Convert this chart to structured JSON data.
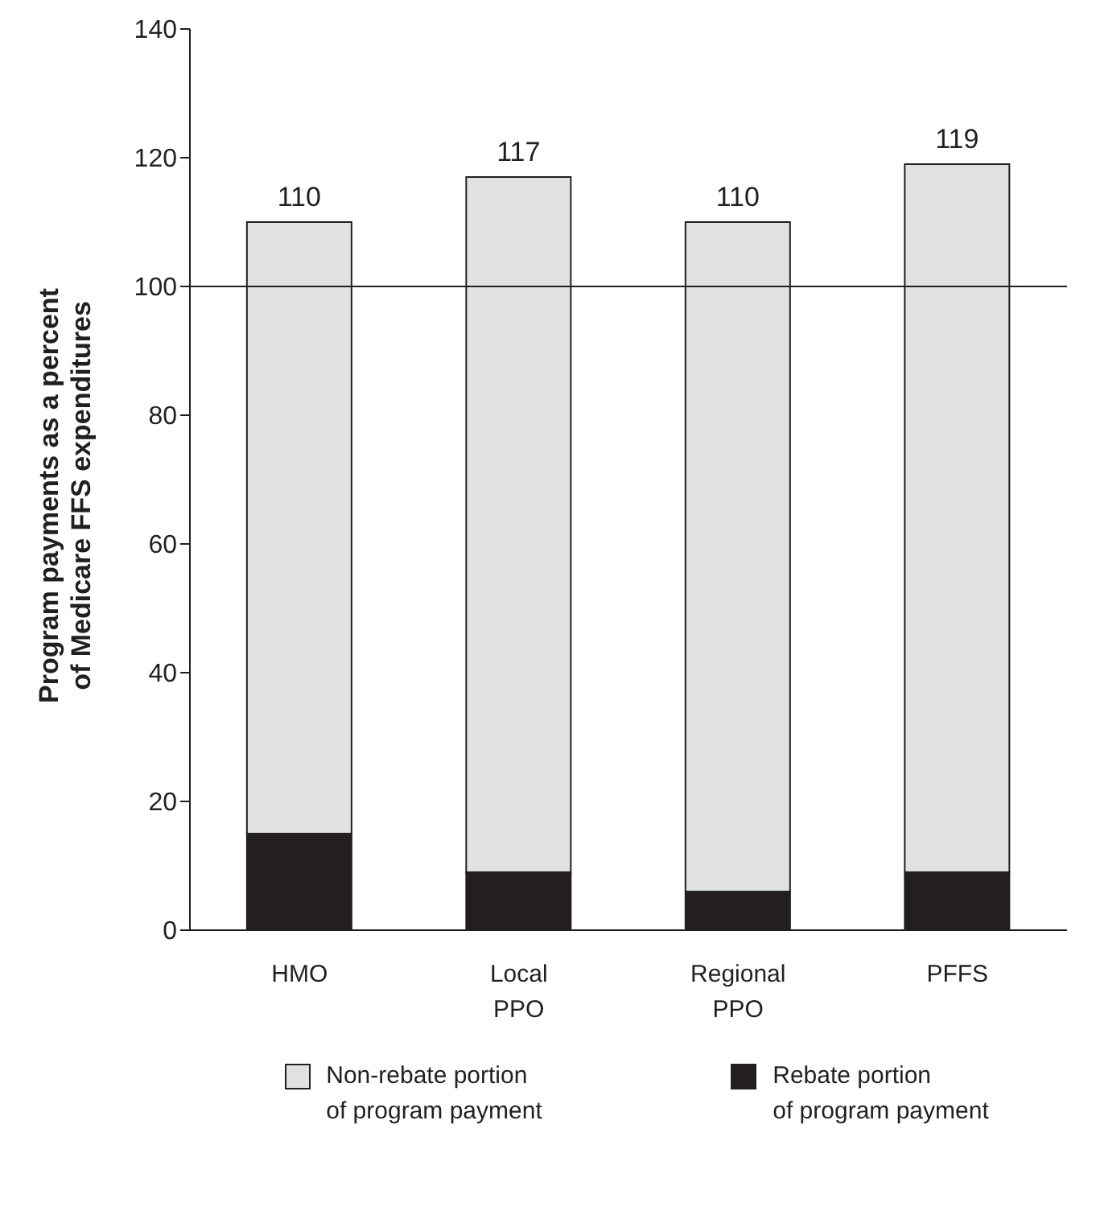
{
  "chart_data": {
    "type": "bar",
    "stacked": true,
    "ylabel": "Program payments as a percent of Medicare FFS expenditures",
    "categories": [
      "HMO",
      "Local PPO",
      "Regional PPO",
      "PFFS"
    ],
    "series": [
      {
        "name": "Rebate portion of program payment",
        "color": "#231f20",
        "values": [
          15,
          9,
          6,
          9
        ]
      },
      {
        "name": "Non-rebate portion of program payment",
        "color": "#e0e1e3",
        "values": [
          95,
          108,
          104,
          110
        ]
      }
    ],
    "totals": [
      "110",
      "117",
      "110",
      "119"
    ],
    "ylim": [
      0,
      140
    ],
    "yticks": [
      0,
      20,
      40,
      60,
      80,
      100,
      120,
      140
    ],
    "ref_lines": [
      {
        "axis": "y",
        "value": 100,
        "color": "#231f20"
      }
    ],
    "grid": false,
    "legend": "bottom"
  }
}
